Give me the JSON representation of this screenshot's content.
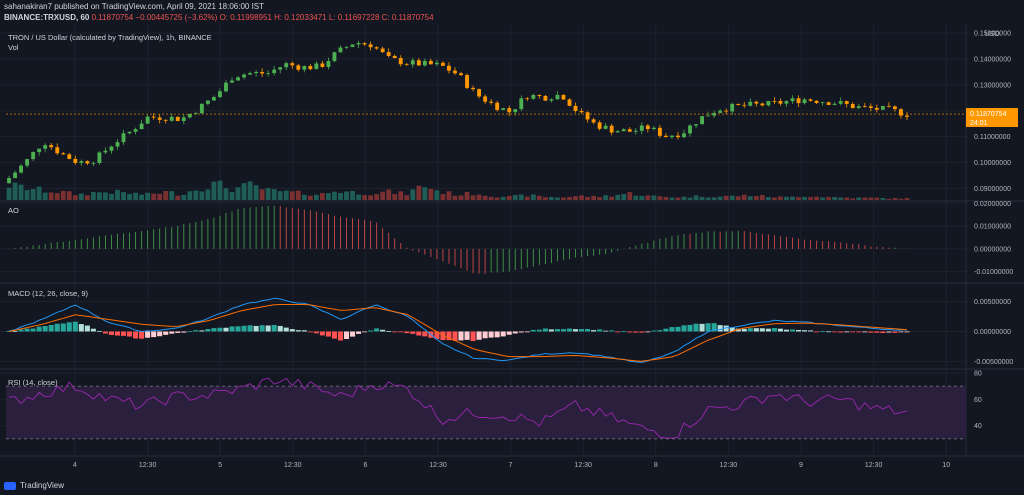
{
  "header": {
    "line1": "sahanakiran7 published on TradingView.com, April 09, 2021 18:06:00 IST",
    "symbol": "BINANCE:TRXUSD, 60",
    "change": "0.11870754 −0.00445725 (−3.62%)",
    "ohlc": "O: 0.11998951 H: 0.12033471 L: 0.11697228 C: 0.11870754"
  },
  "main_pane": {
    "title": "TRON / US Dollar (calculated by TradingView), 1h, BINANCE",
    "vol_label": "Vol",
    "currency": "USD",
    "last_price": "0.11870754",
    "countdown": "24:01"
  },
  "ao_pane": {
    "label": "AO"
  },
  "macd_pane": {
    "label": "MACD (12, 26, close, 9)"
  },
  "rsi_pane": {
    "label": "RSI (14, close)"
  },
  "footer": {
    "brand": "TradingView"
  },
  "colors": {
    "background": "#131722",
    "up": "#26a69a",
    "down": "#ef5350",
    "candle_up": "#4caf50",
    "candle_down": "#ff9800",
    "macd_line": "#2196f3",
    "signal_line": "#ff6d00",
    "rsi_line": "#9c27b0",
    "rsi_band": "#2a1f3d",
    "grid": "#1e222d",
    "price_tag": "#ff9800"
  },
  "chart_data": [
    {
      "type": "candlestick",
      "name": "price",
      "y_ticks": [
        "0.15000000",
        "0.14000000",
        "0.13000000",
        "0.12000000",
        "0.11000000",
        "0.10000000",
        "0.09000000"
      ],
      "ylim": [
        0.0855,
        0.1535
      ],
      "x_ticks": [
        "4",
        "12:30",
        "5",
        "12:30",
        "6",
        "12:30",
        "7",
        "12:30",
        "8",
        "12:30",
        "9",
        "12:30",
        "10"
      ],
      "close_anchors": [
        0.094,
        0.1005,
        0.1082,
        0.1035,
        0.1,
        0.1012,
        0.1072,
        0.1118,
        0.1175,
        0.1175,
        0.1168,
        0.121,
        0.126,
        0.1335,
        0.1345,
        0.1345,
        0.138,
        0.1368,
        0.137,
        0.1425,
        0.1465,
        0.1455,
        0.14,
        0.1385,
        0.138,
        0.1375,
        0.134,
        0.1265,
        0.1225,
        0.1195,
        0.126,
        0.1252,
        0.1263,
        0.119,
        0.1145,
        0.1125,
        0.112,
        0.1135,
        0.1102,
        0.1115,
        0.117,
        0.1205,
        0.1215,
        0.1222,
        0.1225,
        0.1235,
        0.1245,
        0.1238,
        0.123,
        0.1215,
        0.1208,
        0.1203,
        0.1187
      ],
      "volume_anchors": [
        0.55,
        0.45,
        0.35,
        0.3,
        0.2,
        0.28,
        0.3,
        0.25,
        0.2,
        0.3,
        0.22,
        0.45,
        0.6,
        0.4,
        0.55,
        0.35,
        0.3,
        0.25,
        0.2,
        0.35,
        0.28,
        0.25,
        0.3,
        0.22,
        0.55,
        0.3,
        0.2,
        0.25,
        0.15,
        0.12,
        0.18,
        0.12,
        0.1,
        0.15,
        0.12,
        0.18,
        0.25,
        0.15,
        0.12,
        0.1,
        0.15,
        0.12,
        0.15,
        0.18,
        0.12,
        0.1,
        0.15,
        0.12,
        0.1,
        0.08,
        0.08,
        0.06,
        0.06
      ]
    },
    {
      "type": "histogram",
      "name": "AO",
      "y_ticks": [
        "0.02000000",
        "0.01000000",
        "0.00000000",
        "-0.01000000"
      ],
      "ylim": [
        -0.0145,
        0.021
      ],
      "anchors": [
        0.0,
        0.002,
        0.004,
        0.006,
        0.008,
        0.01,
        0.013,
        0.018,
        0.019,
        0.017,
        0.014,
        0.012,
        0.0,
        -0.005,
        -0.011,
        -0.01,
        -0.007,
        -0.004,
        -0.002,
        0.002,
        0.006,
        0.0075,
        0.008,
        0.006,
        0.004,
        0.003,
        0.001,
        0.0
      ]
    },
    {
      "type": "macd",
      "name": "MACD",
      "y_ticks": [
        "0.00500000",
        "0.00000000",
        "-0.00500000"
      ],
      "ylim": [
        -0.0061,
        0.0081
      ],
      "macd_anchors": [
        0.0,
        0.002,
        0.0045,
        0.0015,
        0.0,
        0.0005,
        0.0022,
        0.0045,
        0.0055,
        0.0045,
        0.002,
        0.0045,
        0.0025,
        -0.002,
        -0.0045,
        -0.0048,
        -0.0038,
        -0.0035,
        -0.0042,
        -0.0053,
        -0.0035,
        0.0,
        0.001,
        0.0018,
        0.0015,
        0.001,
        0.0005,
        0.0002
      ],
      "signal_anchors": [
        0.0,
        0.0012,
        0.0028,
        0.002,
        0.0012,
        0.0008,
        0.0018,
        0.0035,
        0.0045,
        0.0045,
        0.0035,
        0.004,
        0.0028,
        -0.0005,
        -0.003,
        -0.0042,
        -0.0042,
        -0.004,
        -0.0044,
        -0.005,
        -0.0042,
        -0.0015,
        0.0005,
        0.0013,
        0.0014,
        0.0011,
        0.0007,
        0.0003
      ]
    },
    {
      "type": "line",
      "name": "RSI",
      "y_ticks": [
        "80",
        "60",
        "40"
      ],
      "ylim": [
        17,
        83
      ],
      "bands": [
        70,
        30
      ],
      "anchors": [
        58,
        65,
        70,
        60,
        55,
        62,
        63,
        68,
        75,
        70,
        62,
        72,
        68,
        45,
        50,
        48,
        42,
        55,
        47,
        38,
        33,
        52,
        56,
        64,
        58,
        60,
        53,
        50
      ]
    }
  ]
}
